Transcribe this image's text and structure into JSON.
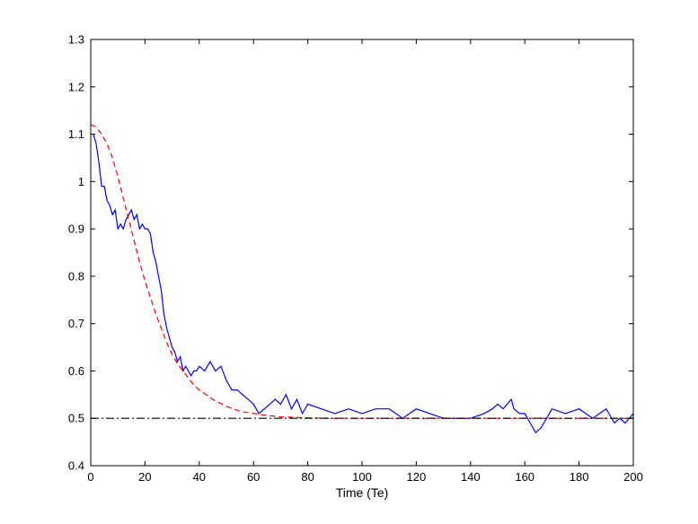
{
  "chart_data": {
    "type": "line",
    "title": "",
    "xlabel": "Time (Te)",
    "ylabel": "",
    "xlim": [
      0,
      200
    ],
    "ylim": [
      0.4,
      1.3
    ],
    "xticks": [
      "0",
      "20",
      "40",
      "60",
      "80",
      "100",
      "120",
      "140",
      "160",
      "180",
      "200"
    ],
    "yticks": [
      "0.4",
      "0.5",
      "0.6",
      "0.7",
      "0.8",
      "0.9",
      "1",
      "1.1",
      "1.2",
      "1.3"
    ],
    "grid": false,
    "legend": "none",
    "series": [
      {
        "style": "solid",
        "color": "#0000ff",
        "x": [
          1,
          2,
          3,
          4,
          5,
          6,
          7,
          8,
          9,
          10,
          11,
          12,
          13,
          14,
          15,
          16,
          17,
          18,
          19,
          20,
          21,
          22,
          23,
          24,
          25,
          26,
          27,
          28,
          29,
          30,
          31,
          32,
          33,
          34,
          35,
          36,
          37,
          38,
          39,
          40,
          42,
          44,
          46,
          48,
          50,
          52,
          54,
          56,
          58,
          60,
          62,
          64,
          66,
          68,
          70,
          72,
          74,
          76,
          78,
          80,
          85,
          90,
          95,
          100,
          105,
          110,
          115,
          120,
          125,
          130,
          135,
          140,
          145,
          148,
          150,
          152,
          155,
          156,
          158,
          160,
          162,
          164,
          166,
          168,
          170,
          175,
          180,
          185,
          190,
          193,
          195,
          197,
          200
        ],
        "y": [
          1.1,
          1.08,
          1.04,
          0.99,
          0.99,
          0.96,
          0.95,
          0.93,
          0.94,
          0.9,
          0.91,
          0.9,
          0.92,
          0.93,
          0.94,
          0.92,
          0.93,
          0.9,
          0.91,
          0.9,
          0.9,
          0.89,
          0.85,
          0.83,
          0.8,
          0.77,
          0.72,
          0.69,
          0.67,
          0.65,
          0.64,
          0.62,
          0.63,
          0.6,
          0.61,
          0.6,
          0.59,
          0.6,
          0.6,
          0.61,
          0.6,
          0.62,
          0.6,
          0.61,
          0.58,
          0.56,
          0.56,
          0.55,
          0.54,
          0.53,
          0.51,
          0.52,
          0.53,
          0.54,
          0.53,
          0.55,
          0.52,
          0.54,
          0.51,
          0.53,
          0.52,
          0.51,
          0.52,
          0.51,
          0.52,
          0.52,
          0.5,
          0.52,
          0.51,
          0.5,
          0.5,
          0.5,
          0.51,
          0.52,
          0.53,
          0.52,
          0.54,
          0.52,
          0.51,
          0.51,
          0.49,
          0.47,
          0.48,
          0.5,
          0.52,
          0.51,
          0.52,
          0.5,
          0.52,
          0.49,
          0.5,
          0.49,
          0.51
        ]
      },
      {
        "style": "dashed",
        "color": "#ff0000",
        "x": [
          0,
          2,
          4,
          6,
          8,
          10,
          12,
          14,
          16,
          18,
          20,
          22,
          24,
          26,
          28,
          30,
          32,
          34,
          36,
          38,
          40,
          45,
          50,
          55,
          60,
          65,
          70,
          80,
          90,
          100,
          120,
          140,
          160,
          180,
          200
        ],
        "y": [
          1.12,
          1.115,
          1.1,
          1.08,
          1.05,
          1.01,
          0.965,
          0.92,
          0.875,
          0.83,
          0.79,
          0.755,
          0.72,
          0.69,
          0.66,
          0.635,
          0.615,
          0.6,
          0.585,
          0.57,
          0.56,
          0.54,
          0.525,
          0.515,
          0.51,
          0.506,
          0.503,
          0.501,
          0.5,
          0.5,
          0.5,
          0.5,
          0.5,
          0.5,
          0.5
        ]
      },
      {
        "style": "dashdot",
        "color": "#000000",
        "x": [
          0,
          200
        ],
        "y": [
          0.5,
          0.5
        ]
      }
    ]
  }
}
